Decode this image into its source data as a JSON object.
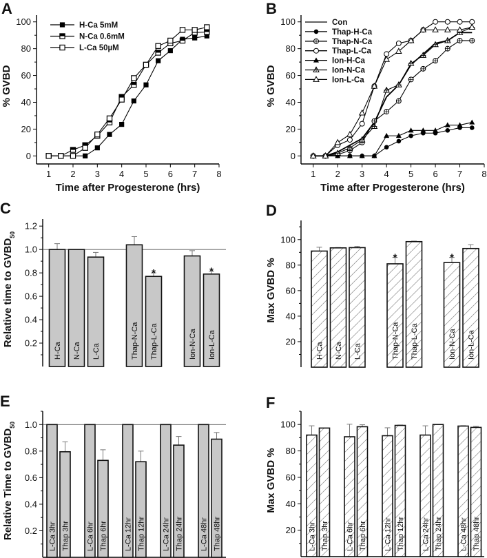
{
  "chart_data": [
    {
      "panel": "A",
      "type": "line",
      "xlabel": "Time after Progesterone (hrs)",
      "ylabel": "% GVBD",
      "xlim": [
        0.5,
        8
      ],
      "ylim": [
        -6,
        105
      ],
      "xticks": [
        1,
        2,
        3,
        4,
        5,
        6,
        7,
        8
      ],
      "yticks": [
        0,
        20,
        40,
        60,
        80,
        100
      ],
      "legend": "top-left",
      "x": [
        1,
        1.5,
        2,
        2.5,
        3,
        3.5,
        4,
        4.5,
        5,
        5.5,
        6,
        6.5,
        7,
        7.5
      ],
      "series": [
        {
          "name": "H-Ca  5mM",
          "marker": "filled-square",
          "values": [
            0,
            0,
            0,
            0,
            6,
            16,
            23.5,
            41,
            53,
            71,
            78.5,
            87,
            88,
            89.5
          ]
        },
        {
          "name": "N-Ca  0.6mM",
          "marker": "half-square",
          "values": [
            0,
            0,
            4.5,
            8,
            15,
            25,
            44,
            53,
            68,
            77,
            84,
            86,
            92,
            92.5
          ]
        },
        {
          "name": "L-Ca  50µM",
          "marker": "open-square",
          "values": [
            0,
            0,
            0,
            6,
            16,
            28,
            42,
            58,
            68,
            82,
            86,
            94,
            94,
            96
          ]
        }
      ]
    },
    {
      "panel": "B",
      "type": "line",
      "xlabel": "Time after Progesterone (hrs)",
      "ylabel": "% GVBD",
      "xlim": [
        0.5,
        8
      ],
      "ylim": [
        -6,
        105
      ],
      "xticks": [
        1,
        2,
        3,
        4,
        5,
        6,
        7,
        8
      ],
      "yticks": [
        0,
        20,
        40,
        60,
        80,
        100
      ],
      "legend": "top-left",
      "x": [
        1,
        1.5,
        2,
        2.5,
        3,
        3.5,
        4,
        4.5,
        5,
        5.5,
        6,
        6.5,
        7,
        7.5
      ],
      "series": [
        {
          "name": "Con",
          "marker": "none",
          "values": [
            0,
            0,
            3,
            8,
            13,
            25,
            44,
            53,
            68,
            76,
            84,
            86,
            92,
            92
          ]
        },
        {
          "name": "Thap-H-Ca",
          "marker": "filled-circle",
          "values": [
            0,
            0,
            0,
            0,
            0,
            0,
            6.5,
            11,
            15,
            17,
            17,
            19,
            21,
            21
          ]
        },
        {
          "name": "Thap-N-Ca",
          "marker": "crossed-circle",
          "values": [
            0,
            0,
            1,
            4,
            10,
            26,
            33,
            41,
            57,
            65,
            71,
            80,
            86,
            86
          ]
        },
        {
          "name": "Thap-L-Ca",
          "marker": "open-circle",
          "values": [
            0,
            0,
            8,
            12,
            24,
            52,
            76,
            84,
            86,
            94,
            100,
            100,
            100,
            100
          ]
        },
        {
          "name": "Ion-H-Ca",
          "marker": "filled-triangle",
          "values": [
            0,
            0,
            0,
            0,
            0,
            0,
            15,
            15,
            19,
            19,
            19,
            23,
            23,
            25
          ]
        },
        {
          "name": "Ion-N-Ca",
          "marker": "crossed-triangle",
          "values": [
            0,
            0,
            2,
            6,
            12,
            22,
            49,
            53,
            69,
            75,
            83,
            86,
            92,
            96
          ]
        },
        {
          "name": "Ion-L-Ca",
          "marker": "open-triangle",
          "values": [
            0,
            0,
            10,
            16,
            32,
            52,
            72,
            78,
            86,
            94,
            94,
            94,
            94,
            96
          ]
        }
      ]
    },
    {
      "panel": "C",
      "type": "bar",
      "ylabel": "Relative time to GVBD",
      "ylabel_sub": "50",
      "ylim": [
        0,
        1.26
      ],
      "yticks": [
        0.2,
        0.4,
        0.6,
        0.8,
        1.0,
        1.2
      ],
      "yticks_text": [
        "0.2",
        "0.4",
        "0.6",
        "0.8",
        "1.0",
        "1.2"
      ],
      "reference_line": 1.0,
      "bar_fill": "#c8c8c8",
      "groups": [
        [
          {
            "label": "H-Ca",
            "value": 1.0,
            "error": 0.05
          },
          {
            "label": "N-Ca",
            "value": 1.0,
            "error": 0
          },
          {
            "label": "L-Ca",
            "value": 0.935,
            "error": 0.04
          }
        ],
        [
          {
            "label": "Thap-N-Ca",
            "value": 1.04,
            "error": 0.07
          },
          {
            "label": "Thap-L-Ca",
            "value": 0.77,
            "error": 0.03,
            "significant": "*"
          }
        ],
        [
          {
            "label": "Ion-N-Ca",
            "value": 0.945,
            "error": 0.045
          },
          {
            "label": "Ion-L-Ca",
            "value": 0.79,
            "error": 0.025,
            "significant": "*"
          }
        ]
      ]
    },
    {
      "panel": "D",
      "type": "bar",
      "ylabel": "Max GVBD %",
      "ylim": [
        0,
        115
      ],
      "yticks": [
        20,
        40,
        60,
        80,
        100
      ],
      "yticks_text": [
        "20",
        "40",
        "60",
        "80",
        "100"
      ],
      "bar_fill": "hatched",
      "groups": [
        [
          {
            "label": "H-Ca",
            "value": 91,
            "error": 3
          },
          {
            "label": "N-Ca",
            "value": 93.5,
            "error": 0.3
          },
          {
            "label": "L-Ca",
            "value": 93.7,
            "error": 1
          }
        ],
        [
          {
            "label": "Thap-N-Ca",
            "value": 81,
            "error": 5,
            "significant": "*"
          },
          {
            "label": "Thap-L-Ca",
            "value": 98.4,
            "error": 0.4
          }
        ],
        [
          {
            "label": "Ion-N-Ca",
            "value": 82,
            "error": 4,
            "significant": "*"
          },
          {
            "label": "Ion-L-Ca",
            "value": 93,
            "error": 3
          }
        ]
      ]
    },
    {
      "panel": "E",
      "type": "bar",
      "ylabel": "Relative Time to GVBD",
      "ylabel_sub": "50",
      "ylim": [
        0,
        1.1
      ],
      "yticks": [
        0.2,
        0.4,
        0.6,
        0.8,
        1.0
      ],
      "yticks_text": [
        "0.2",
        "0.4",
        "0.6",
        "0.8",
        "1.0"
      ],
      "reference_line": 1.0,
      "bar_fill": "#c8c8c8",
      "groups": [
        [
          {
            "label": "L-Ca 3hr",
            "value": 1.0,
            "error": 0
          },
          {
            "label": "Thap 3hr",
            "value": 0.795,
            "error": 0.075
          }
        ],
        [
          {
            "label": "L-Ca 6hr",
            "value": 1.0,
            "error": 0
          },
          {
            "label": "Thap 6hr",
            "value": 0.73,
            "error": 0.08
          }
        ],
        [
          {
            "label": "L-Ca 12hr",
            "value": 1.0,
            "error": 0
          },
          {
            "label": "Thap 12hr",
            "value": 0.72,
            "error": 0.08
          }
        ],
        [
          {
            "label": "L-Ca 24hr",
            "value": 1.0,
            "error": 0
          },
          {
            "label": "Thap 24hr",
            "value": 0.845,
            "error": 0.065
          }
        ],
        [
          {
            "label": "L-Ca 48hr",
            "value": 1.0,
            "error": 0
          },
          {
            "label": "Thap 48hr",
            "value": 0.89,
            "error": 0.05
          }
        ]
      ]
    },
    {
      "panel": "F",
      "type": "bar",
      "ylabel": "Max GVBD %",
      "ylim": [
        0,
        110
      ],
      "yticks": [
        20,
        40,
        60,
        80,
        100
      ],
      "yticks_text": [
        "20",
        "40",
        "60",
        "80",
        "100"
      ],
      "bar_fill": "hatched",
      "groups": [
        [
          {
            "label": "L-Ca 3hr",
            "value": 92,
            "error": 7
          },
          {
            "label": "Thap 3hr",
            "value": 97.3,
            "error": 0
          }
        ],
        [
          {
            "label": "L-Ca 6hr",
            "value": 90.7,
            "error": 9.5
          },
          {
            "label": "Thap 6hr",
            "value": 98.3,
            "error": 1.5
          }
        ],
        [
          {
            "label": "L-Ca 12hr",
            "value": 91.5,
            "error": 6
          },
          {
            "label": "Thap 12hr",
            "value": 99.3,
            "error": 0.3
          }
        ],
        [
          {
            "label": "L-Ca 24hr",
            "value": 92,
            "error": 7
          },
          {
            "label": "Thap 24hr",
            "value": 100,
            "error": 0
          }
        ],
        [
          {
            "label": "L-Ca 48hr",
            "value": 98.8,
            "error": 0.3
          },
          {
            "label": "Thap 48hr",
            "value": 97.8,
            "error": 0.8
          }
        ]
      ]
    }
  ]
}
